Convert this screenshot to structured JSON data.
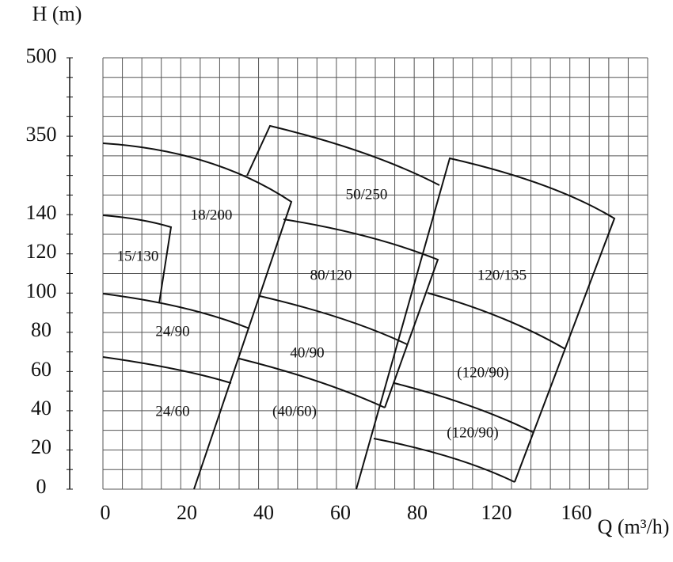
{
  "axes": {
    "y_title": "H (m)",
    "x_title": "Q (m³/h)",
    "y_ticks": [
      "500",
      "350",
      "140",
      "120",
      "100",
      "80",
      "60",
      "40",
      "20",
      "0"
    ],
    "x_ticks": [
      "0",
      "20",
      "40",
      "60",
      "80",
      "120",
      "160"
    ]
  },
  "regions": [
    {
      "label": "18/200"
    },
    {
      "label": "50/250"
    },
    {
      "label": "15/130"
    },
    {
      "label": "80/120"
    },
    {
      "label": "120/135"
    },
    {
      "label": "24/90"
    },
    {
      "label": "40/90"
    },
    {
      "label": "(120/90)"
    },
    {
      "label": "24/60"
    },
    {
      "label": "(40/60)"
    },
    {
      "label": "(120/90)"
    }
  ]
}
